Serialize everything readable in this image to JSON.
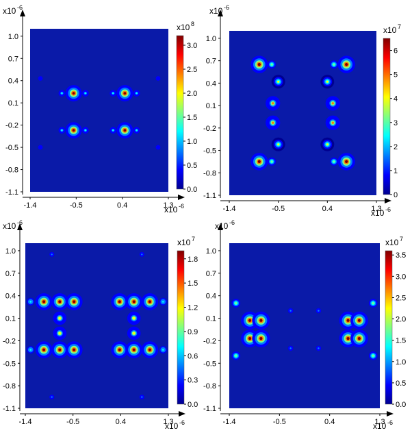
{
  "colors": {
    "background": "#0a1aa8",
    "axis": "#000000",
    "text": "#000000"
  },
  "colormap": [
    "#00008f",
    "#0000ff",
    "#0080ff",
    "#00ffff",
    "#80ff80",
    "#ffff00",
    "#ff8000",
    "#ff0000",
    "#800000"
  ],
  "chart_data": [
    {
      "type": "heatmap",
      "x_exponent": "x10",
      "x_exponent_power": "-6",
      "y_exponent": "x10",
      "y_exponent_power": "-6",
      "x_ticks": [
        "-1.4",
        "-0.5",
        "0.4",
        "1.3"
      ],
      "x_tick_values": [
        -1.4,
        -0.5,
        0.4,
        1.3
      ],
      "xlim": [
        -1.4,
        1.3
      ],
      "y_ticks": [
        "1.0",
        "0.7",
        "0.4",
        "0.1",
        "-0.2",
        "-0.5",
        "-0.8",
        "-1.1"
      ],
      "y_tick_values": [
        1.0,
        0.7,
        0.4,
        0.1,
        -0.2,
        -0.5,
        -0.8,
        -1.1
      ],
      "ylim": [
        -1.1,
        1.1
      ],
      "colorbar": {
        "exponent": "x10",
        "exponent_power": "8",
        "ticks": [
          "3.0",
          "2.5",
          "2.0",
          "1.5",
          "1.0",
          "0.5",
          "0.0"
        ],
        "tick_values": [
          3.0,
          2.5,
          2.0,
          1.5,
          1.0,
          0.5,
          0.0
        ],
        "range": [
          0,
          3.2
        ]
      },
      "hotspots": [
        {
          "x": -0.55,
          "y": 0.23,
          "value": 3.2
        },
        {
          "x": 0.45,
          "y": 0.23,
          "value": 3.2
        },
        {
          "x": -0.55,
          "y": -0.27,
          "value": 3.2
        },
        {
          "x": 0.45,
          "y": -0.27,
          "value": 3.2
        },
        {
          "x": -0.78,
          "y": 0.23,
          "value": 1.0
        },
        {
          "x": -0.32,
          "y": 0.23,
          "value": 1.0
        },
        {
          "x": 0.22,
          "y": 0.23,
          "value": 1.0
        },
        {
          "x": 0.68,
          "y": 0.23,
          "value": 1.0
        },
        {
          "x": -0.78,
          "y": -0.27,
          "value": 1.0
        },
        {
          "x": -0.32,
          "y": -0.27,
          "value": 1.0
        },
        {
          "x": 0.22,
          "y": -0.27,
          "value": 1.0
        },
        {
          "x": 0.68,
          "y": -0.27,
          "value": 1.0
        },
        {
          "x": -1.2,
          "y": 0.43,
          "value": 0.5
        },
        {
          "x": 1.1,
          "y": 0.43,
          "value": 0.5
        },
        {
          "x": -1.2,
          "y": -0.5,
          "value": 0.5
        },
        {
          "x": 1.1,
          "y": -0.5,
          "value": 0.5
        }
      ]
    },
    {
      "type": "heatmap",
      "x_exponent": "x10",
      "x_exponent_power": "-6",
      "y_exponent": "x10",
      "y_exponent_power": "-6",
      "x_ticks": [
        "-1.4",
        "-0.5",
        "0.4",
        "1.3"
      ],
      "x_tick_values": [
        -1.4,
        -0.5,
        0.4,
        1.3
      ],
      "xlim": [
        -1.4,
        1.3
      ],
      "y_ticks": [
        "1.0",
        "0.7",
        "0.4",
        "0.1",
        "-0.2",
        "-0.5",
        "-0.8",
        "-1.1"
      ],
      "y_tick_values": [
        1.0,
        0.7,
        0.4,
        0.1,
        -0.2,
        -0.5,
        -0.8,
        -1.1
      ],
      "ylim": [
        -1.1,
        1.1
      ],
      "colorbar": {
        "exponent": "x10",
        "exponent_power": "7",
        "ticks": [
          "6",
          "5",
          "4",
          "3",
          "2",
          "1",
          "0"
        ],
        "tick_values": [
          6,
          5,
          4,
          3,
          2,
          1,
          0
        ],
        "range": [
          0,
          6.5
        ]
      },
      "hotspots": [
        {
          "x": -0.85,
          "y": 0.65,
          "value": 6.5
        },
        {
          "x": 0.75,
          "y": 0.65,
          "value": 6.5
        },
        {
          "x": -0.85,
          "y": -0.65,
          "value": 6.5
        },
        {
          "x": 0.75,
          "y": -0.65,
          "value": 6.5
        },
        {
          "x": -0.62,
          "y": 0.65,
          "value": 3.0
        },
        {
          "x": 0.52,
          "y": 0.65,
          "value": 3.0
        },
        {
          "x": -0.62,
          "y": -0.65,
          "value": 3.0
        },
        {
          "x": 0.52,
          "y": -0.65,
          "value": 3.0
        },
        {
          "x": -0.5,
          "y": 0.42,
          "value": 4.0
        },
        {
          "x": 0.4,
          "y": 0.42,
          "value": 4.0
        },
        {
          "x": -0.5,
          "y": -0.42,
          "value": 4.0
        },
        {
          "x": 0.4,
          "y": -0.42,
          "value": 4.0
        },
        {
          "x": -0.6,
          "y": 0.13,
          "value": 4.5
        },
        {
          "x": 0.5,
          "y": 0.13,
          "value": 4.5
        },
        {
          "x": -0.6,
          "y": -0.13,
          "value": 4.5
        },
        {
          "x": 0.5,
          "y": -0.13,
          "value": 4.5
        }
      ]
    },
    {
      "type": "heatmap",
      "x_exponent": "x10",
      "x_exponent_power": "-6",
      "y_exponent": "x10",
      "y_exponent_power": "-6",
      "x_ticks": [
        "-1.4",
        "-0.5",
        "0.4",
        "1.3"
      ],
      "x_tick_values": [
        -1.4,
        -0.5,
        0.4,
        1.3
      ],
      "xlim": [
        -1.4,
        1.3
      ],
      "y_ticks": [
        "1.0",
        "0.7",
        "0.4",
        "0.1",
        "-0.2",
        "-0.5",
        "-0.8",
        "-1.1"
      ],
      "y_tick_values": [
        1.0,
        0.7,
        0.4,
        0.1,
        -0.2,
        -0.5,
        -0.8,
        -1.1
      ],
      "ylim": [
        -1.1,
        1.1
      ],
      "colorbar": {
        "exponent": "x10",
        "exponent_power": "7",
        "ticks": [
          "1.8",
          "1.5",
          "1.2",
          "0.9",
          "0.6",
          "0.3",
          "0.0"
        ],
        "tick_values": [
          1.8,
          1.5,
          1.2,
          0.9,
          0.6,
          0.3,
          0.0
        ],
        "range": [
          0,
          1.9
        ]
      },
      "hotspots": [
        {
          "x": -1.05,
          "y": 0.32,
          "value": 1.9
        },
        {
          "x": -0.75,
          "y": 0.32,
          "value": 1.9
        },
        {
          "x": -0.48,
          "y": 0.32,
          "value": 1.9
        },
        {
          "x": 0.38,
          "y": 0.32,
          "value": 1.9
        },
        {
          "x": 0.65,
          "y": 0.32,
          "value": 1.9
        },
        {
          "x": 0.95,
          "y": 0.32,
          "value": 1.9
        },
        {
          "x": -1.05,
          "y": -0.32,
          "value": 1.9
        },
        {
          "x": -0.75,
          "y": -0.32,
          "value": 1.9
        },
        {
          "x": -0.48,
          "y": -0.32,
          "value": 1.9
        },
        {
          "x": 0.38,
          "y": -0.32,
          "value": 1.9
        },
        {
          "x": 0.65,
          "y": -0.32,
          "value": 1.9
        },
        {
          "x": 0.95,
          "y": -0.32,
          "value": 1.9
        },
        {
          "x": -1.3,
          "y": 0.32,
          "value": 0.8
        },
        {
          "x": 1.2,
          "y": 0.32,
          "value": 0.8
        },
        {
          "x": -1.3,
          "y": -0.32,
          "value": 0.8
        },
        {
          "x": 1.2,
          "y": -0.32,
          "value": 0.8
        },
        {
          "x": -0.75,
          "y": 0.1,
          "value": 1.2
        },
        {
          "x": 0.65,
          "y": 0.1,
          "value": 1.2
        },
        {
          "x": -0.75,
          "y": -0.1,
          "value": 1.2
        },
        {
          "x": 0.65,
          "y": -0.1,
          "value": 1.2
        },
        {
          "x": -0.9,
          "y": 0.95,
          "value": 0.4
        },
        {
          "x": 0.8,
          "y": 0.95,
          "value": 0.4
        },
        {
          "x": -0.9,
          "y": -0.95,
          "value": 0.4
        },
        {
          "x": 0.8,
          "y": -0.95,
          "value": 0.4
        }
      ]
    },
    {
      "type": "heatmap",
      "x_exponent": "x10",
      "x_exponent_power": "-6",
      "y_exponent": "x10",
      "y_exponent_power": "-6",
      "x_ticks": [
        "-1.4",
        "-0.5",
        "0.4",
        "1.3"
      ],
      "x_tick_values": [
        -1.4,
        -0.5,
        0.4,
        1.3
      ],
      "xlim": [
        -1.4,
        1.3
      ],
      "y_ticks": [
        "1.0",
        "0.7",
        "0.4",
        "0.1",
        "-0.2",
        "-0.5",
        "-0.8",
        "-1.1"
      ],
      "y_tick_values": [
        1.0,
        0.7,
        0.4,
        0.1,
        -0.2,
        -0.5,
        -0.8,
        -1.1
      ],
      "ylim": [
        -1.1,
        1.1
      ],
      "colorbar": {
        "exponent": "x10",
        "exponent_power": "7",
        "ticks": [
          "3.5",
          "3.0",
          "2.5",
          "2.0",
          "1.5",
          "1.0",
          "0.5",
          "0.0"
        ],
        "tick_values": [
          3.5,
          3.0,
          2.5,
          2.0,
          1.5,
          1.0,
          0.5,
          0.0
        ],
        "range": [
          0,
          3.6
        ]
      },
      "hotspots": [
        {
          "x": -1.03,
          "y": 0.07,
          "value": 3.6
        },
        {
          "x": -0.83,
          "y": 0.07,
          "value": 3.6
        },
        {
          "x": 0.73,
          "y": 0.07,
          "value": 3.6
        },
        {
          "x": 0.93,
          "y": 0.07,
          "value": 3.6
        },
        {
          "x": -1.03,
          "y": -0.17,
          "value": 3.6
        },
        {
          "x": -0.83,
          "y": -0.17,
          "value": 3.6
        },
        {
          "x": 0.73,
          "y": -0.17,
          "value": 3.6
        },
        {
          "x": 0.93,
          "y": -0.17,
          "value": 3.6
        },
        {
          "x": -1.28,
          "y": 0.3,
          "value": 1.8
        },
        {
          "x": 1.18,
          "y": 0.3,
          "value": 1.8
        },
        {
          "x": -1.28,
          "y": -0.4,
          "value": 1.8
        },
        {
          "x": 1.18,
          "y": -0.4,
          "value": 1.8
        },
        {
          "x": -0.3,
          "y": 0.2,
          "value": 0.8
        },
        {
          "x": 0.2,
          "y": 0.2,
          "value": 0.8
        },
        {
          "x": -0.3,
          "y": -0.3,
          "value": 0.8
        },
        {
          "x": 0.2,
          "y": -0.3,
          "value": 0.8
        }
      ]
    }
  ]
}
